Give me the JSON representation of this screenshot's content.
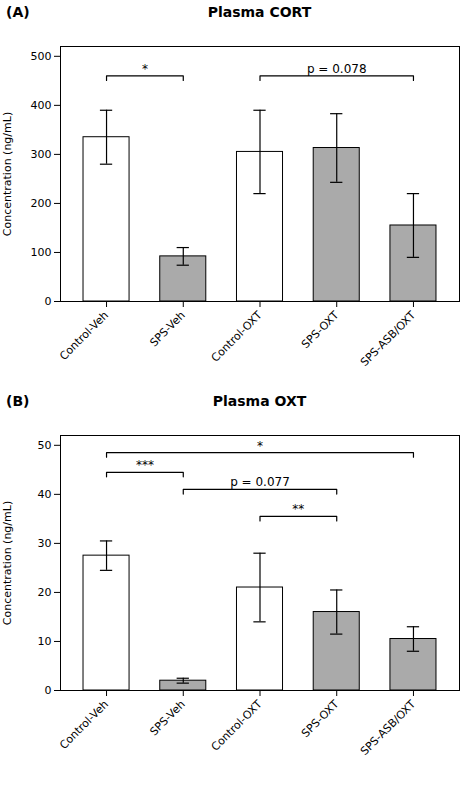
{
  "chart_data": [
    {
      "type": "bar",
      "title": "Plasma CORT",
      "panel_label": "(A)",
      "ylabel": "Concentration (ng/mL)",
      "categories": [
        "Control-Veh",
        "SPS-Veh",
        "Control-OXT",
        "SPS-OXT",
        "SPS-ASB/OXT"
      ],
      "values": [
        335,
        92,
        305,
        313,
        155
      ],
      "errors": [
        55,
        18,
        85,
        70,
        65
      ],
      "colors": [
        "white",
        "#aaaaaa",
        "white",
        "#aaaaaa",
        "#aaaaaa"
      ],
      "ylim": [
        0,
        520
      ],
      "yticks": [
        0,
        100,
        200,
        300,
        400,
        500
      ],
      "annotations": [
        {
          "from": "Control-Veh",
          "to": "SPS-Veh",
          "y": 460,
          "text": "*"
        },
        {
          "from": "Control-OXT",
          "to": "SPS-ASB/OXT",
          "y": 460,
          "text": "p = 0.078"
        }
      ]
    },
    {
      "type": "bar",
      "title": "Plasma OXT",
      "panel_label": "(B)",
      "ylabel": "Concentration (ng/mL)",
      "categories": [
        "Control-Veh",
        "SPS-Veh",
        "Control-OXT",
        "SPS-OXT",
        "SPS-ASB/OXT"
      ],
      "values": [
        27.5,
        2.0,
        21.0,
        16.0,
        10.5
      ],
      "errors": [
        3.0,
        0.5,
        7.0,
        4.5,
        2.5
      ],
      "colors": [
        "white",
        "#aaaaaa",
        "white",
        "#aaaaaa",
        "#aaaaaa"
      ],
      "ylim": [
        0,
        52
      ],
      "yticks": [
        0,
        10,
        20,
        30,
        40,
        50
      ],
      "annotations": [
        {
          "from": "Control-Veh",
          "to": "SPS-Veh",
          "y": 44.5,
          "text": "***"
        },
        {
          "from": "Control-OXT",
          "to": "SPS-OXT",
          "y": 35.5,
          "text": "**"
        },
        {
          "from": "SPS-Veh",
          "to": "SPS-OXT",
          "y": 41.0,
          "text": "p = 0.077"
        },
        {
          "from": "Control-Veh",
          "to": "SPS-ASB/OXT",
          "y": 48.5,
          "text": "*"
        }
      ]
    }
  ]
}
